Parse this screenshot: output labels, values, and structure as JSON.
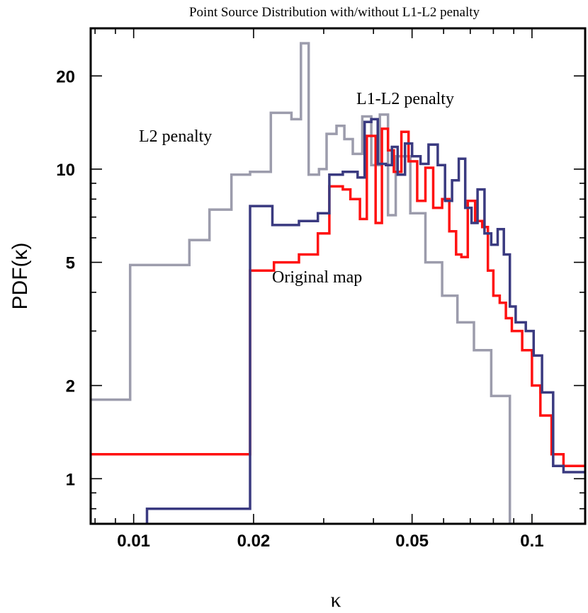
{
  "chart_data": {
    "type": "line",
    "step": true,
    "title": "Point Source Distribution with/without L1-L2 penalty",
    "xlabel": "κ",
    "ylabel": "PDF(κ)",
    "xscale": "log",
    "yscale": "log",
    "xlim": [
      0.0078,
      0.136
    ],
    "ylim": [
      0.715,
      28.5
    ],
    "xticks": [
      {
        "value": 0.01,
        "label": "0.01"
      },
      {
        "value": 0.02,
        "label": "0.02"
      },
      {
        "value": 0.05,
        "label": "0.05"
      },
      {
        "value": 0.1,
        "label": "0.1"
      }
    ],
    "yticks": [
      {
        "value": 1,
        "label": "1"
      },
      {
        "value": 2,
        "label": "2"
      },
      {
        "value": 5,
        "label": "5"
      },
      {
        "value": 10,
        "label": "10"
      },
      {
        "value": 20,
        "label": "20"
      }
    ],
    "series": [
      {
        "name": "L2 penalty",
        "color": "#9c9cac",
        "x": [
          0.0078,
          0.0098,
          0.0138,
          0.0155,
          0.0176,
          0.0196,
          0.0221,
          0.0249,
          0.0263,
          0.0275,
          0.0292,
          0.0305,
          0.0323,
          0.0338,
          0.0355,
          0.0375,
          0.0395,
          0.0415,
          0.0435,
          0.0455,
          0.0495,
          0.054,
          0.0595,
          0.065,
          0.0715,
          0.079,
          0.088
        ],
        "values": [
          1.8,
          4.9,
          5.9,
          7.4,
          9.6,
          9.8,
          15.2,
          14.5,
          25.5,
          9.6,
          10.0,
          13.0,
          13.8,
          12.5,
          11.2,
          14.8,
          10.3,
          15.0,
          7.1,
          11.0,
          7.2,
          5.0,
          3.9,
          3.2,
          2.6,
          1.85,
          0.715
        ]
      },
      {
        "name": "Original map",
        "color": "#ff1111",
        "x": [
          0.0078,
          0.0196,
          0.0225,
          0.026,
          0.029,
          0.031,
          0.0335,
          0.035,
          0.037,
          0.0385,
          0.0405,
          0.042,
          0.0435,
          0.045,
          0.047,
          0.049,
          0.0515,
          0.054,
          0.0565,
          0.0595,
          0.062,
          0.0645,
          0.0665,
          0.069,
          0.072,
          0.075,
          0.0775,
          0.08,
          0.083,
          0.086,
          0.089,
          0.0945,
          0.1,
          0.105,
          0.112,
          0.12,
          0.128
        ],
        "values": [
          1.2,
          4.7,
          5.0,
          5.3,
          6.2,
          8.8,
          8.6,
          8.0,
          6.9,
          12.8,
          6.7,
          13.5,
          11.5,
          9.8,
          13.2,
          10.6,
          7.9,
          10.1,
          7.5,
          8.0,
          6.3,
          5.3,
          5.2,
          7.9,
          6.8,
          6.5,
          4.7,
          3.9,
          3.7,
          3.3,
          3.0,
          2.6,
          2.0,
          1.6,
          1.2,
          1.1,
          1.1
        ]
      },
      {
        "name": "L1-L2 penalty",
        "color": "#3a3a80",
        "x": [
          0.0108,
          0.0196,
          0.0223,
          0.026,
          0.029,
          0.031,
          0.0335,
          0.0365,
          0.038,
          0.0395,
          0.041,
          0.043,
          0.0445,
          0.046,
          0.048,
          0.05,
          0.0525,
          0.055,
          0.058,
          0.0605,
          0.063,
          0.0655,
          0.068,
          0.0705,
          0.073,
          0.076,
          0.079,
          0.082,
          0.085,
          0.088,
          0.091,
          0.0965,
          0.101,
          0.106,
          0.113,
          0.12,
          0.128
        ],
        "values": [
          0.8,
          7.6,
          6.6,
          6.8,
          7.2,
          9.6,
          9.8,
          9.4,
          14.2,
          14.5,
          10.4,
          10.3,
          11.8,
          9.6,
          12.1,
          11.0,
          10.4,
          12.0,
          10.3,
          7.9,
          9.2,
          10.8,
          7.5,
          6.7,
          8.6,
          6.2,
          5.7,
          6.4,
          5.3,
          3.6,
          3.2,
          3.0,
          2.5,
          1.9,
          1.1,
          1.05,
          1.05
        ]
      }
    ],
    "annotations": [
      {
        "text": "L2 penalty",
        "series": "L2 penalty"
      },
      {
        "text": "L1-L2 penalty",
        "series": "L1-L2 penalty"
      },
      {
        "text": "Original map",
        "series": "Original map"
      }
    ]
  }
}
